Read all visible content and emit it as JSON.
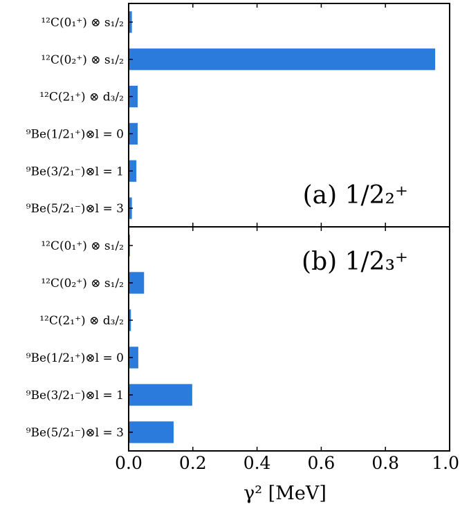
{
  "chart_data": {
    "type": "bar",
    "orientation": "horizontal",
    "xlabel": "γ² [MeV]",
    "xlim": [
      0.0,
      1.0
    ],
    "xticks": [
      "0.0",
      "0.2",
      "0.4",
      "0.6",
      "0.8",
      "1.0"
    ],
    "grid": false,
    "bar_color": "#2b7bdc",
    "panels": [
      {
        "label": "(a) 1/2₂⁺",
        "label_position": "bottom-right",
        "categories": [
          "¹²C(0₁⁺) ⊗ s₁/₂",
          "¹²C(0₂⁺) ⊗ s₁/₂",
          "¹²C(2₁⁺) ⊗ d₃/₂",
          "⁹Be(1/2₁⁺)⊗l = 0",
          "⁹Be(3/2₁⁻)⊗l = 1",
          "⁹Be(5/2₁⁻)⊗l = 3"
        ],
        "values": [
          0.01,
          0.955,
          0.028,
          0.028,
          0.024,
          0.01
        ]
      },
      {
        "label": "(b) 1/2₃⁺",
        "label_position": "top-right",
        "categories": [
          "¹²C(0₁⁺) ⊗ s₁/₂",
          "¹²C(0₂⁺) ⊗ s₁/₂",
          "¹²C(2₁⁺) ⊗ d₃/₂",
          "⁹Be(1/2₁⁺)⊗l = 0",
          "⁹Be(3/2₁⁻)⊗l = 1",
          "⁹Be(5/2₁⁻)⊗l = 3"
        ],
        "values": [
          0.004,
          0.048,
          0.007,
          0.03,
          0.198,
          0.14
        ]
      }
    ]
  }
}
